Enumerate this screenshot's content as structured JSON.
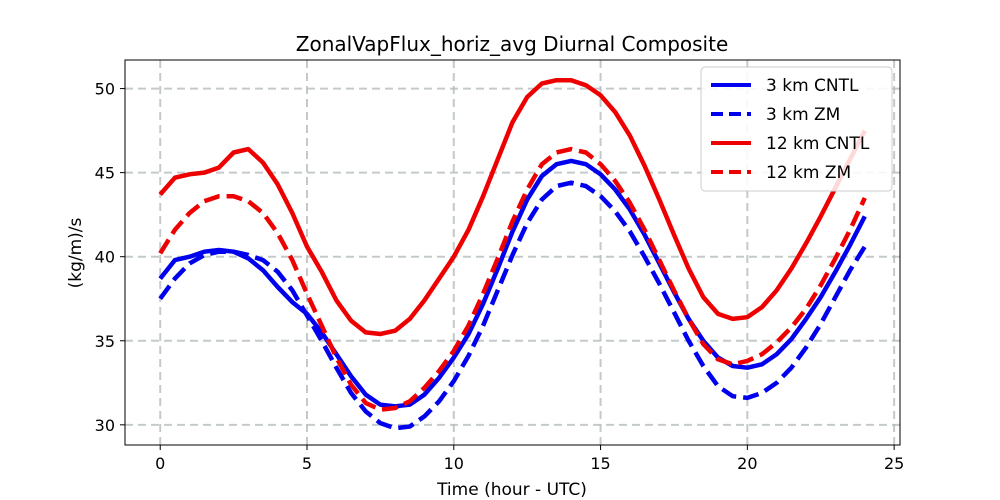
{
  "chart_data": {
    "type": "line",
    "title": "ZonalVapFlux_horiz_avg Diurnal Composite",
    "xlabel": "Time (hour - UTC)",
    "ylabel": "(kg/m)/s",
    "xlim": [
      -1.2,
      25.2
    ],
    "ylim": [
      28.8,
      51.7
    ],
    "xticks": [
      0,
      5,
      10,
      15,
      20,
      25
    ],
    "yticks": [
      30,
      35,
      40,
      45,
      50
    ],
    "grid": true,
    "legend_position": "top-right",
    "series": [
      {
        "name": "3 km CNTL",
        "color": "#0000ee",
        "style": "solid",
        "x": [
          0,
          0.5,
          1,
          1.5,
          2,
          2.5,
          3,
          3.5,
          4,
          4.5,
          5,
          5.5,
          6,
          6.5,
          7,
          7.5,
          8,
          8.5,
          9,
          9.5,
          10,
          10.5,
          11,
          11.5,
          12,
          12.5,
          13,
          13.5,
          14,
          14.5,
          15,
          15.5,
          16,
          16.5,
          17,
          17.5,
          18,
          18.5,
          19,
          19.5,
          20,
          20.5,
          21,
          21.5,
          22,
          22.5,
          23,
          23.5,
          24
        ],
        "values": [
          38.7,
          39.8,
          40.0,
          40.3,
          40.4,
          40.3,
          39.9,
          39.2,
          38.2,
          37.3,
          36.6,
          35.5,
          34.2,
          32.9,
          31.8,
          31.2,
          31.1,
          31.2,
          31.8,
          32.8,
          34.0,
          35.4,
          37.2,
          39.3,
          41.5,
          43.4,
          44.8,
          45.5,
          45.7,
          45.5,
          44.9,
          44.0,
          42.8,
          41.3,
          39.6,
          37.9,
          36.3,
          35.0,
          34.0,
          33.5,
          33.4,
          33.6,
          34.2,
          35.1,
          36.3,
          37.6,
          39.1,
          40.7,
          42.4
        ]
      },
      {
        "name": "3 km ZM",
        "color": "#0000ee",
        "style": "dashed",
        "x": [
          0,
          0.5,
          1,
          1.5,
          2,
          2.5,
          3,
          3.5,
          4,
          4.5,
          5,
          5.5,
          6,
          6.5,
          7,
          7.5,
          8,
          8.5,
          9,
          9.5,
          10,
          10.5,
          11,
          11.5,
          12,
          12.5,
          13,
          13.5,
          14,
          14.5,
          15,
          15.5,
          16,
          16.5,
          17,
          17.5,
          18,
          18.5,
          19,
          19.5,
          20,
          20.5,
          21,
          21.5,
          22,
          22.5,
          23,
          23.5,
          24
        ],
        "values": [
          37.5,
          38.7,
          39.6,
          40.1,
          40.3,
          40.3,
          40.1,
          39.8,
          39.1,
          38.0,
          36.5,
          35.0,
          33.4,
          31.9,
          30.8,
          30.1,
          29.8,
          29.9,
          30.5,
          31.4,
          32.6,
          34.1,
          35.9,
          38.0,
          40.1,
          42.0,
          43.4,
          44.2,
          44.4,
          44.2,
          43.6,
          42.7,
          41.5,
          40.0,
          38.4,
          36.7,
          35.0,
          33.5,
          32.3,
          31.7,
          31.6,
          31.9,
          32.5,
          33.4,
          34.6,
          36.0,
          37.6,
          39.2,
          40.6
        ]
      },
      {
        "name": "12 km CNTL",
        "color": "#ee0000",
        "style": "solid",
        "x": [
          0,
          0.5,
          1,
          1.5,
          2,
          2.5,
          3,
          3.5,
          4,
          4.5,
          5,
          5.5,
          6,
          6.5,
          7,
          7.5,
          8,
          8.5,
          9,
          9.5,
          10,
          10.5,
          11,
          11.5,
          12,
          12.5,
          13,
          13.5,
          14,
          14.5,
          15,
          15.5,
          16,
          16.5,
          17,
          17.5,
          18,
          18.5,
          19,
          19.5,
          20,
          20.5,
          21,
          21.5,
          22,
          22.5,
          23,
          23.5,
          24
        ],
        "values": [
          43.7,
          44.7,
          44.9,
          45.0,
          45.3,
          46.2,
          46.4,
          45.6,
          44.3,
          42.6,
          40.6,
          39.1,
          37.4,
          36.2,
          35.5,
          35.4,
          35.6,
          36.3,
          37.4,
          38.7,
          40.0,
          41.6,
          43.6,
          45.8,
          48.0,
          49.5,
          50.3,
          50.5,
          50.5,
          50.2,
          49.6,
          48.6,
          47.2,
          45.4,
          43.4,
          41.3,
          39.3,
          37.6,
          36.6,
          36.3,
          36.4,
          37.0,
          38.0,
          39.3,
          40.8,
          42.4,
          44.1,
          45.8,
          47.5
        ]
      },
      {
        "name": "12 km ZM",
        "color": "#ee0000",
        "style": "dashed",
        "x": [
          0,
          0.5,
          1,
          1.5,
          2,
          2.5,
          3,
          3.5,
          4,
          4.5,
          5,
          5.5,
          6,
          6.5,
          7,
          7.5,
          8,
          8.5,
          9,
          9.5,
          10,
          10.5,
          11,
          11.5,
          12,
          12.5,
          13,
          13.5,
          14,
          14.5,
          15,
          15.5,
          16,
          16.5,
          17,
          17.5,
          18,
          18.5,
          19,
          19.5,
          20,
          20.5,
          21,
          21.5,
          22,
          22.5,
          23,
          23.5,
          24
        ],
        "values": [
          40.2,
          41.6,
          42.6,
          43.3,
          43.6,
          43.6,
          43.3,
          42.6,
          41.4,
          39.8,
          37.8,
          35.9,
          34.0,
          32.4,
          31.3,
          30.9,
          31.0,
          31.4,
          32.2,
          33.2,
          34.4,
          35.9,
          37.8,
          39.9,
          42.1,
          44.0,
          45.5,
          46.2,
          46.4,
          46.2,
          45.5,
          44.5,
          43.2,
          41.6,
          39.8,
          38.0,
          36.3,
          34.8,
          33.9,
          33.6,
          33.8,
          34.2,
          34.9,
          35.8,
          36.9,
          38.3,
          39.9,
          41.6,
          43.5
        ]
      }
    ]
  }
}
